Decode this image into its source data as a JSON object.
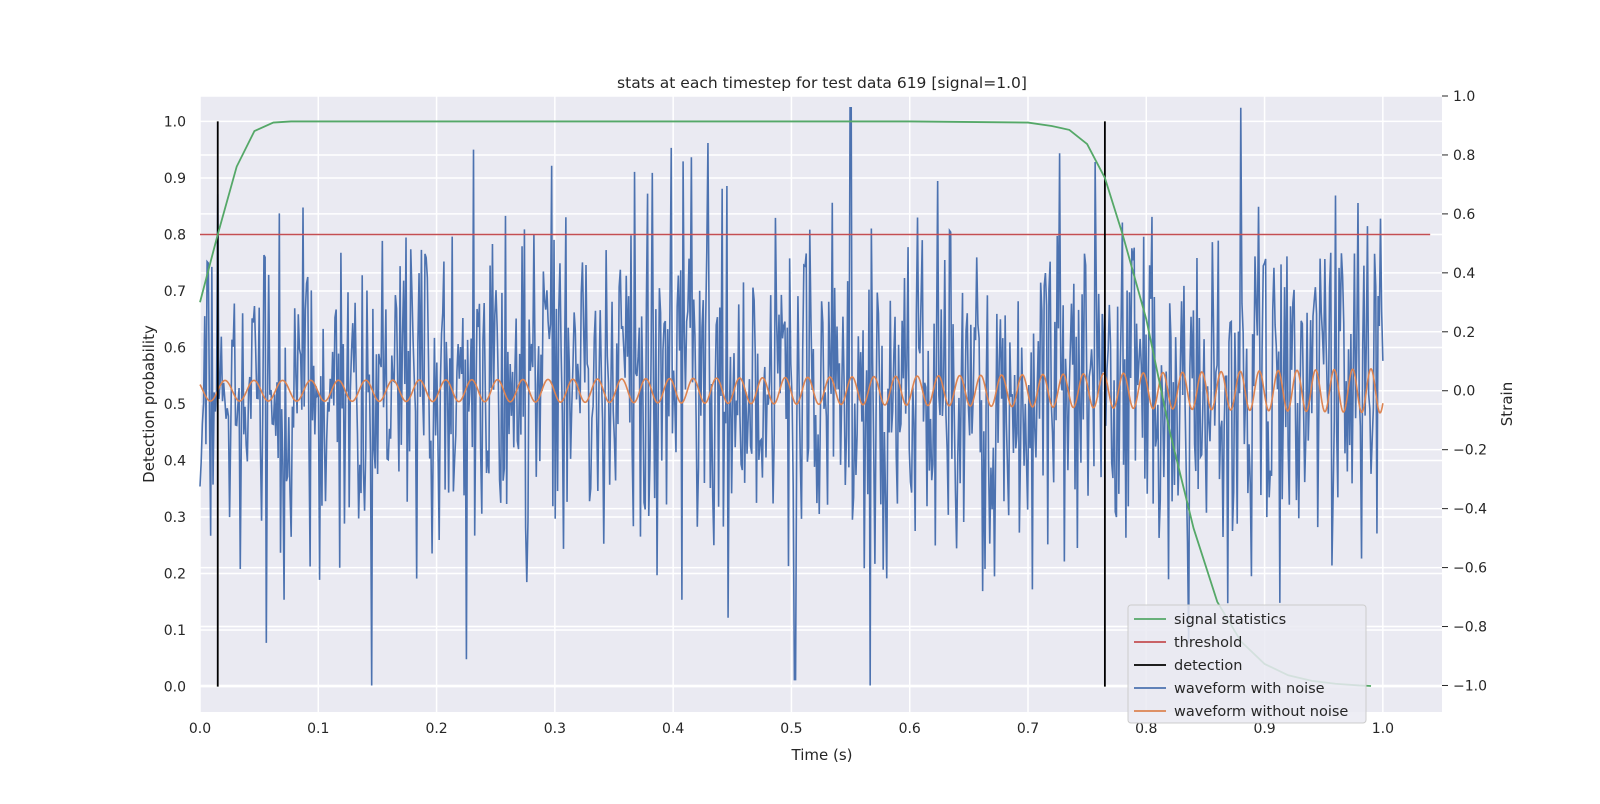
{
  "chart_data": {
    "type": "line",
    "title": "stats at each timestep for test data 619 [signal=1.0]",
    "xlabel": "Time (s)",
    "ylabel": "Detection probability",
    "y2label": "Strain",
    "xlim": [
      0.0,
      1.05
    ],
    "ylim": [
      -0.045,
      1.045
    ],
    "y2lim": [
      -1.09,
      1.0
    ],
    "xticks": [
      0.0,
      0.1,
      0.2,
      0.3,
      0.4,
      0.5,
      0.6,
      0.7,
      0.8,
      0.9,
      1.0
    ],
    "xtick_labels": [
      "0.0",
      "0.1",
      "0.2",
      "0.3",
      "0.4",
      "0.5",
      "0.6",
      "0.7",
      "0.8",
      "0.9",
      "1.0"
    ],
    "yticks": [
      0.0,
      0.1,
      0.2,
      0.3,
      0.4,
      0.5,
      0.6,
      0.7,
      0.8,
      0.9,
      1.0
    ],
    "ytick_labels": [
      "0.0",
      "0.1",
      "0.2",
      "0.3",
      "0.4",
      "0.5",
      "0.6",
      "0.7",
      "0.8",
      "0.9",
      "1.0"
    ],
    "y2ticks": [
      1.0,
      0.8,
      0.6,
      0.4,
      0.2,
      0.0,
      -0.2,
      -0.4,
      -0.6,
      -0.8,
      -1.0
    ],
    "y2tick_labels": [
      "1.0",
      "0.8",
      "0.6",
      "0.4",
      "0.2",
      "0.0",
      "−0.2",
      "−0.4",
      "−0.6",
      "−0.8",
      "−1.0"
    ],
    "grid": true,
    "legend_position": "lower-right",
    "series": [
      {
        "name": "signal statistics",
        "axis": "left",
        "color": "#55a868",
        "x": [
          0.0,
          0.015,
          0.031,
          0.046,
          0.062,
          0.077,
          0.093,
          0.2,
          0.4,
          0.6,
          0.7,
          0.72,
          0.735,
          0.75,
          0.765,
          0.78,
          0.8,
          0.82,
          0.84,
          0.86,
          0.88,
          0.9,
          0.92,
          0.94,
          0.96,
          0.98,
          0.99
        ],
        "y": [
          0.68,
          0.8,
          0.92,
          0.983,
          0.998,
          1.0,
          1.0,
          1.0,
          1.0,
          1.0,
          0.998,
          0.992,
          0.985,
          0.96,
          0.9,
          0.8,
          0.65,
          0.45,
          0.28,
          0.15,
          0.08,
          0.04,
          0.02,
          0.01,
          0.005,
          0.002,
          0.001
        ]
      },
      {
        "name": "threshold",
        "axis": "left",
        "color": "#c44e52",
        "x": [
          0.0,
          1.04
        ],
        "y": [
          0.8,
          0.8
        ]
      },
      {
        "name": "detection",
        "axis": "left",
        "color": "#000000",
        "segments": [
          {
            "x": 0.015,
            "y": [
              0.0,
              1.0
            ]
          },
          {
            "x": 0.765,
            "y": [
              0.0,
              1.0
            ]
          }
        ]
      },
      {
        "name": "waveform with noise",
        "axis": "right",
        "color": "#4c72b0",
        "description": "random noise around 0 strain, peaks near +0.96 at t≈0.55, minima near -1.0 at t≈0.145 and t≈0.5",
        "x_range": [
          0.0,
          1.0
        ],
        "points": 1000,
        "amplitude": 0.3,
        "seed": 619
      },
      {
        "name": "waveform without noise",
        "axis": "right",
        "color": "#dd8452",
        "description": "chirping sinusoid centered on 0 strain, amplitude grows from ~0.03 to ~0.07",
        "x_range": [
          0.0,
          1.0
        ],
        "freq_start_hz": 40,
        "freq_end_hz": 65,
        "amp_start": 0.035,
        "amp_end": 0.075
      }
    ]
  }
}
